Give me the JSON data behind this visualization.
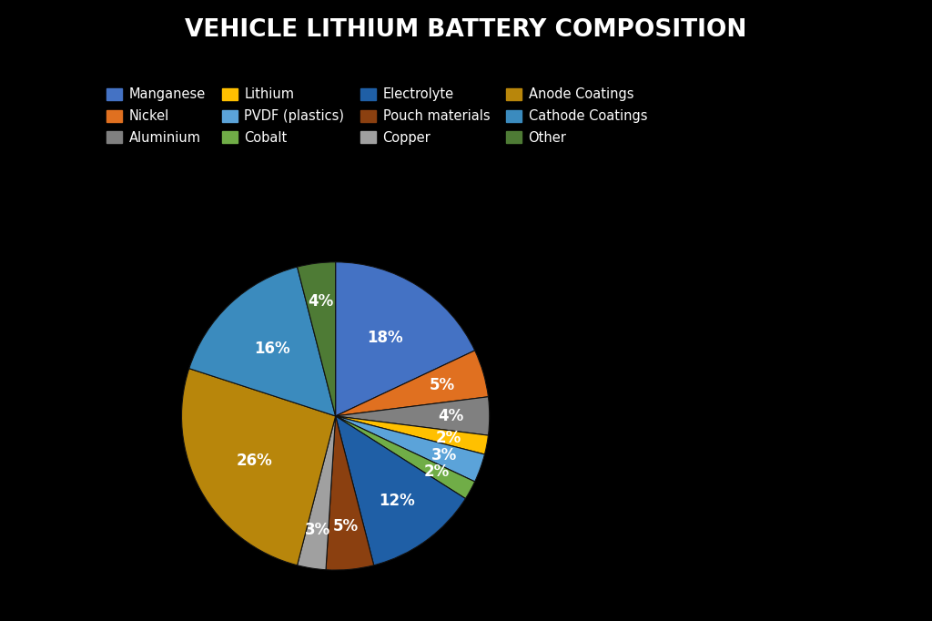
{
  "title": "VEHICLE LITHIUM BATTERY COMPOSITION",
  "labels": [
    "Manganese",
    "Nickel",
    "Aluminium",
    "Lithium",
    "PVDF (plastics)",
    "Cobalt",
    "Electrolyte",
    "Pouch materials",
    "Copper",
    "Anode Coatings",
    "Cathode Coatings",
    "Other"
  ],
  "values": [
    18,
    5,
    4,
    2,
    3,
    2,
    12,
    5,
    3,
    26,
    16,
    4
  ],
  "colors": [
    "#4472C4",
    "#E07020",
    "#808080",
    "#FFC000",
    "#5BA3D9",
    "#70AD47",
    "#1F5FA6",
    "#8B4010",
    "#A0A0A0",
    "#B8860B",
    "#3B8BBE",
    "#4E7B35"
  ],
  "background_color": "#000000",
  "text_color": "#FFFFFF",
  "title_fontsize": 19,
  "label_fontsize": 12,
  "legend_fontsize": 10.5
}
